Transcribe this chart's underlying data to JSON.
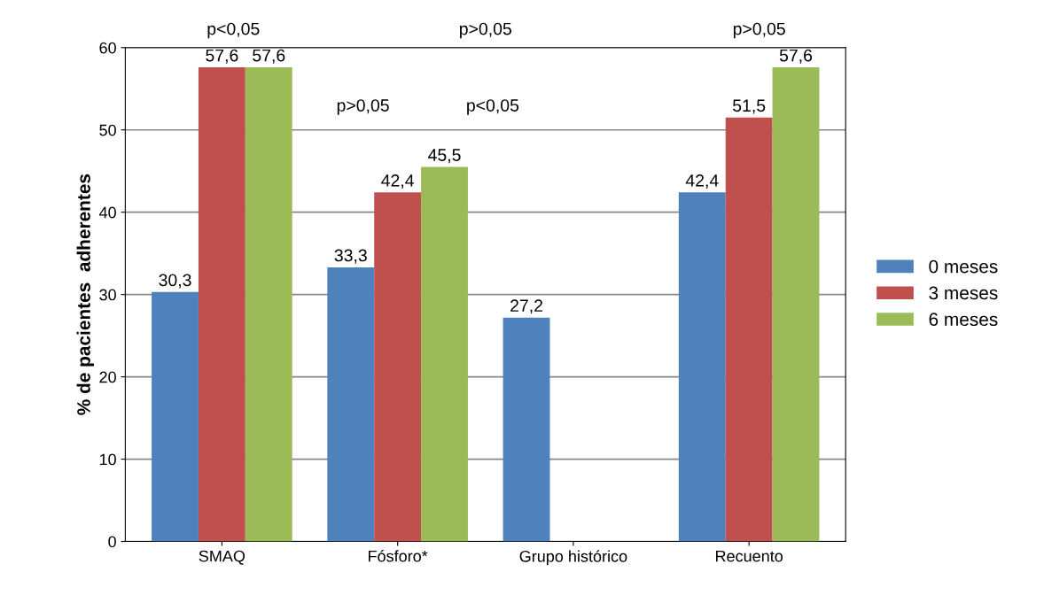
{
  "chart_data": {
    "type": "bar",
    "ylabel": "% de pacientes  adherentes",
    "categories": [
      "SMAQ",
      "Fósforo*",
      "Grupo histórico",
      "Recuento"
    ],
    "series": [
      {
        "name": "0 meses",
        "color": "#4f81bd",
        "values": [
          30.3,
          33.3,
          27.2,
          42.4
        ],
        "value_labels": [
          "30,3",
          "33,3",
          "27,2",
          "42,4"
        ]
      },
      {
        "name": "3 meses",
        "color": "#c0504d",
        "values": [
          57.6,
          42.4,
          null,
          51.5
        ],
        "value_labels": [
          "57,6",
          "42,4",
          null,
          "51,5"
        ]
      },
      {
        "name": "6 meses",
        "color": "#9bbb59",
        "values": [
          57.6,
          45.5,
          null,
          57.6
        ],
        "value_labels": [
          "57,6",
          "45,5",
          null,
          "57,6"
        ]
      }
    ],
    "ylim": [
      0,
      60
    ],
    "yticks": [
      0,
      10,
      20,
      30,
      40,
      50,
      60
    ],
    "grid": "y",
    "legend": "right",
    "annotations": [
      "p<0,05",
      "p>0,05",
      "p>0,05",
      "p<0,05",
      "p>0,05"
    ]
  }
}
